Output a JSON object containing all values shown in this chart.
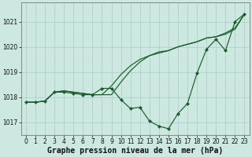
{
  "xlabel": "Graphe pression niveau de la mer (hPa)",
  "bg_color": "#cce8e0",
  "grid_color": "#aacccc",
  "line_color": "#1a5c2a",
  "hours": [
    0,
    1,
    2,
    3,
    4,
    5,
    6,
    7,
    8,
    9,
    10,
    11,
    12,
    13,
    14,
    15,
    16,
    17,
    18,
    19,
    20,
    21,
    22,
    23
  ],
  "line_marked": [
    1017.8,
    1017.8,
    1017.85,
    1018.2,
    1018.2,
    1018.15,
    1018.1,
    1018.1,
    1018.35,
    1018.35,
    1017.9,
    1017.55,
    1017.6,
    1017.05,
    1016.85,
    1016.75,
    1017.35,
    1017.75,
    1018.95,
    1019.9,
    1020.3,
    1019.85,
    1021.0,
    1021.3
  ],
  "line_top": [
    1017.8,
    1017.8,
    1017.85,
    1018.2,
    1018.25,
    1018.2,
    1018.15,
    1018.1,
    1018.1,
    1018.1,
    1018.6,
    1019.05,
    1019.4,
    1019.65,
    1019.8,
    1019.85,
    1020.0,
    1020.1,
    1020.2,
    1020.35,
    1020.4,
    1020.5,
    1020.7,
    1021.3
  ],
  "line_mid": [
    1017.8,
    1017.8,
    1017.85,
    1018.2,
    1018.25,
    1018.2,
    1018.15,
    1018.1,
    1018.1,
    1018.45,
    1018.9,
    1019.25,
    1019.5,
    1019.65,
    1019.75,
    1019.85,
    1020.0,
    1020.1,
    1020.2,
    1020.35,
    1020.4,
    1020.55,
    1020.75,
    1021.3
  ],
  "ylim": [
    1016.5,
    1021.75
  ],
  "yticks": [
    1017,
    1018,
    1019,
    1020,
    1021
  ],
  "xticks": [
    0,
    1,
    2,
    3,
    4,
    5,
    6,
    7,
    8,
    9,
    10,
    11,
    12,
    13,
    14,
    15,
    16,
    17,
    18,
    19,
    20,
    21,
    22,
    23
  ],
  "tick_fontsize": 5.5,
  "label_fontsize": 7
}
